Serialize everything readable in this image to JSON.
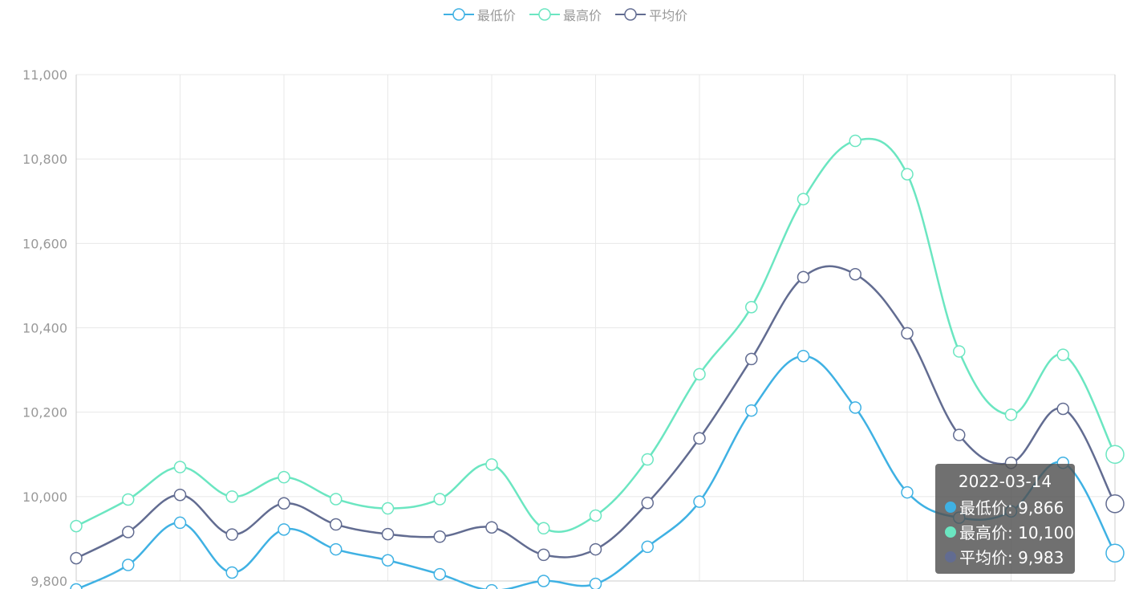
{
  "chart_data": {
    "type": "line",
    "smooth": true,
    "x": [
      "",
      "",
      "",
      "",
      "",
      "",
      "",
      "",
      "",
      "",
      "",
      "",
      "",
      "",
      "",
      "",
      "",
      "",
      "",
      "",
      "2022-03-14"
    ],
    "ylim": [
      9800,
      11000
    ],
    "yticks": [
      9800,
      10000,
      10200,
      10400,
      10600,
      10800,
      11000
    ],
    "ytick_labels": [
      "9,800",
      "10,000",
      "10,200",
      "10,400",
      "10,600",
      "10,800",
      "11,000"
    ],
    "grid": true,
    "legend_position": "top-center",
    "series": [
      {
        "name": "最低价",
        "color": "#3fb1e3",
        "values": [
          9780,
          9838,
          9938,
          9820,
          9922,
          9875,
          9849,
          9816,
          9778,
          9800,
          9793,
          9881,
          9988,
          10204,
          10333,
          10211,
          10010,
          9950,
          9965,
          10080,
          9866
        ]
      },
      {
        "name": "最高价",
        "color": "#6be6c1",
        "values": [
          9930,
          9993,
          10070,
          10000,
          10046,
          9994,
          9972,
          9994,
          10076,
          9925,
          9955,
          10088,
          10290,
          10449,
          10705,
          10843,
          10764,
          10344,
          10194,
          10336,
          10100
        ]
      },
      {
        "name": "平均价",
        "color": "#626c91",
        "values": [
          9854,
          9916,
          10004,
          9910,
          9984,
          9934,
          9911,
          9905,
          9927,
          9862,
          9875,
          9985,
          10138,
          10326,
          10520,
          10527,
          10387,
          10146,
          10080,
          10208,
          9983
        ]
      }
    ]
  },
  "tooltip": {
    "title": "2022-03-14",
    "rows": [
      {
        "label": "最低价: 9,866",
        "color": "#3fb1e3"
      },
      {
        "label": "最高价: 10,100",
        "color": "#6be6c1"
      },
      {
        "label": "平均价: 9,983",
        "color": "#626c91"
      }
    ]
  }
}
